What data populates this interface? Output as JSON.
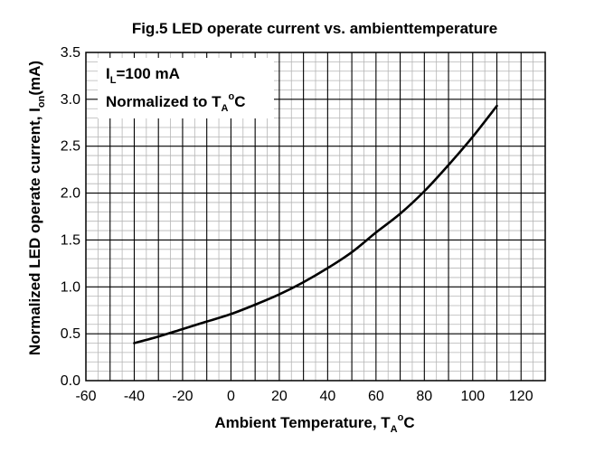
{
  "chart_data": {
    "type": "line",
    "title": "Fig.5 LED operate current vs. ambienttemperature",
    "xlabel": {
      "main": "Ambient Temperature, T",
      "sub": "A",
      "sup": "o",
      "tail": "C"
    },
    "ylabel": {
      "main": "Normalized LED operate current, I",
      "sub": "on",
      "tail": "(mA)"
    },
    "xlim": [
      -60,
      130
    ],
    "ylim": [
      0.0,
      3.5
    ],
    "x_ticks": [
      -60,
      -40,
      -20,
      0,
      20,
      40,
      60,
      80,
      100,
      120
    ],
    "x_tick_labels": [
      "-60",
      "-40",
      "-20",
      "0",
      "20",
      "40",
      "60",
      "80",
      "100",
      "120"
    ],
    "y_ticks": [
      0.0,
      0.5,
      1.0,
      1.5,
      2.0,
      2.5,
      3.0,
      3.5
    ],
    "y_tick_labels": [
      "0.0",
      "0.5",
      "1.0",
      "1.5",
      "2.0",
      "2.5",
      "3.0",
      "3.5"
    ],
    "grid": true,
    "minor_grid": true,
    "legend": {
      "position": "top-left",
      "line1": {
        "main": "I",
        "sub": "L",
        "tail": "=100 mA"
      },
      "line2": {
        "main": "Normalized to T",
        "sub": "A",
        "sup": "o",
        "tail": "C"
      }
    },
    "series": [
      {
        "color": "#000000",
        "x": [
          -40,
          -30,
          -20,
          -10,
          0,
          10,
          20,
          30,
          40,
          50,
          60,
          70,
          80,
          90,
          100,
          110
        ],
        "y": [
          0.4,
          0.47,
          0.55,
          0.63,
          0.71,
          0.81,
          0.92,
          1.05,
          1.2,
          1.37,
          1.58,
          1.78,
          2.02,
          2.3,
          2.6,
          2.93
        ]
      }
    ]
  }
}
